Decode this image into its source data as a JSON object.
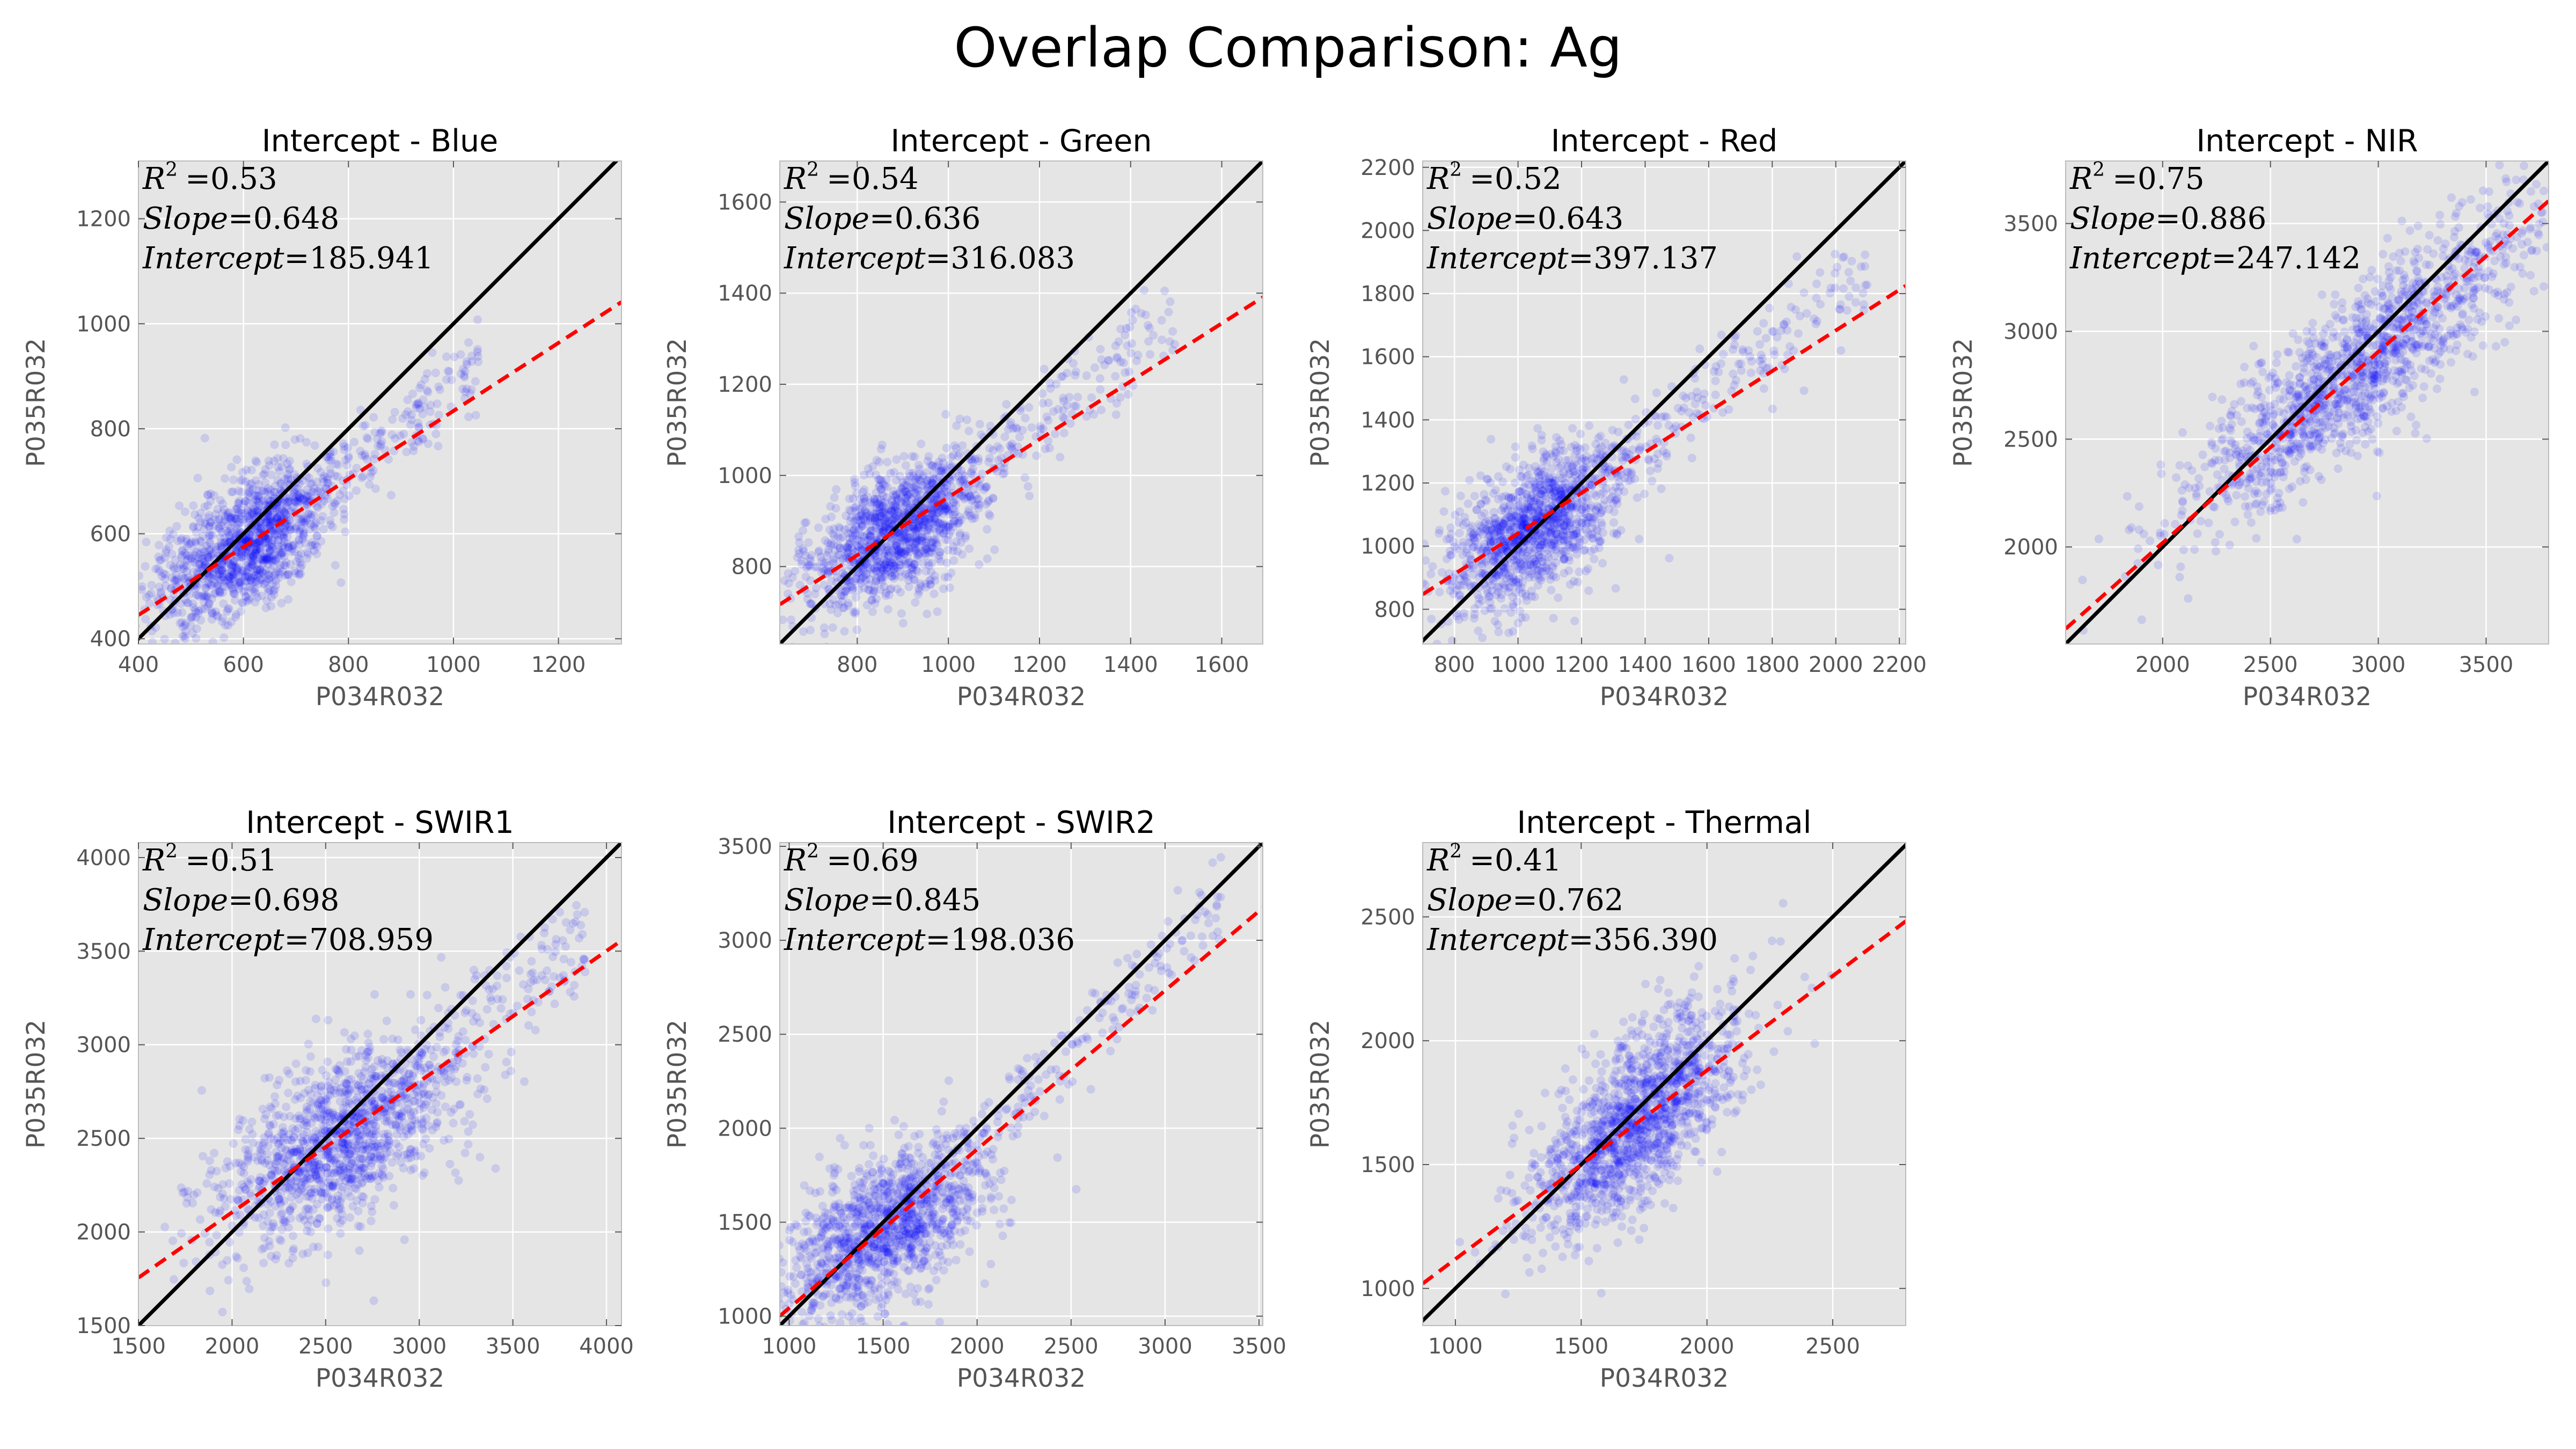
{
  "figure_title": "Overlap Comparison: Ag",
  "colors": {
    "panel_bg": "#e5e5e5",
    "grid": "#ffffff",
    "points": "#0000ff",
    "one_to_one": "#000000",
    "fit": "#ff0000"
  },
  "chart_data": [
    {
      "type": "scatter",
      "title": "Intercept - Blue",
      "xlabel": "P034R032",
      "ylabel": "P035R032",
      "xlim": [
        400,
        1320
      ],
      "ylim": [
        390,
        1310
      ],
      "xticks": [
        400,
        600,
        800,
        1000,
        1200
      ],
      "yticks": [
        400,
        600,
        800,
        1000,
        1200
      ],
      "r2_label": "R",
      "r2_sup": "2",
      "r2": "=0.53",
      "slope_label": "Slope",
      "slope": "=0.648",
      "intercept_label": "Intercept",
      "intercept": "=185.941",
      "fit": {
        "slope": 0.648,
        "intercept": 185.941
      },
      "cloud": {
        "cx": 600,
        "cy": 575,
        "sx": 80,
        "sy": 75,
        "n": 1400,
        "tail_to": 1050,
        "seed": 11
      }
    },
    {
      "type": "scatter",
      "title": "Intercept - Green",
      "xlabel": "P034R032",
      "ylabel": "P035R032",
      "xlim": [
        630,
        1690
      ],
      "ylim": [
        630,
        1690
      ],
      "xticks": [
        800,
        1000,
        1200,
        1400,
        1600
      ],
      "yticks": [
        800,
        1000,
        1200,
        1400,
        1600
      ],
      "r2_label": "R",
      "r2_sup": "2",
      "r2": "=0.54",
      "slope_label": "Slope",
      "slope": "=0.636",
      "intercept_label": "Intercept",
      "intercept": "=316.083",
      "fit": {
        "slope": 0.636,
        "intercept": 316.083
      },
      "cloud": {
        "cx": 880,
        "cy": 875,
        "sx": 95,
        "sy": 85,
        "n": 1400,
        "tail_to": 1500,
        "seed": 22
      }
    },
    {
      "type": "scatter",
      "title": "Intercept - Red",
      "xlabel": "P034R032",
      "ylabel": "P035R032",
      "xlim": [
        700,
        2220
      ],
      "ylim": [
        690,
        2220
      ],
      "xticks": [
        800,
        1000,
        1200,
        1400,
        1600,
        1800,
        2000,
        2200
      ],
      "yticks": [
        800,
        1000,
        1200,
        1400,
        1600,
        1800,
        2000,
        2200
      ],
      "r2_label": "R",
      "r2_sup": "2",
      "r2": "=0.52",
      "slope_label": "Slope",
      "slope": "=0.643",
      "intercept_label": "Intercept",
      "intercept": "=397.137",
      "fit": {
        "slope": 0.643,
        "intercept": 397.137
      },
      "cloud": {
        "cx": 1050,
        "cy": 1060,
        "sx": 140,
        "sy": 130,
        "n": 1400,
        "tail_to": 2100,
        "seed": 33
      }
    },
    {
      "type": "scatter",
      "title": "Intercept - NIR",
      "xlabel": "P034R032",
      "ylabel": "P035R032",
      "xlim": [
        1550,
        3790
      ],
      "ylim": [
        1550,
        3790
      ],
      "xticks": [
        2000,
        2500,
        3000,
        3500
      ],
      "yticks": [
        2000,
        2500,
        3000,
        3500
      ],
      "r2_label": "R",
      "r2_sup": "2",
      "r2": "=0.75",
      "slope_label": "Slope",
      "slope": "=0.886",
      "intercept_label": "Intercept",
      "intercept": "=247.142",
      "fit": {
        "slope": 0.886,
        "intercept": 247.142
      },
      "cloud": {
        "cx": 2900,
        "cy": 2820,
        "sx": 420,
        "sy": 380,
        "n": 1400,
        "tail_to": 0,
        "seed": 44,
        "corr": 0.88
      }
    },
    {
      "type": "scatter",
      "title": "Intercept - SWIR1",
      "xlabel": "P034R032",
      "ylabel": "P035R032",
      "xlim": [
        1500,
        4080
      ],
      "ylim": [
        1500,
        4080
      ],
      "xticks": [
        1500,
        2000,
        2500,
        3000,
        3500,
        4000
      ],
      "yticks": [
        1500,
        2000,
        2500,
        3000,
        3500,
        4000
      ],
      "r2_label": "R",
      "r2_sup": "2",
      "r2": "=0.51",
      "slope_label": "Slope",
      "slope": "=0.698",
      "intercept_label": "Intercept",
      "intercept": "=708.959",
      "fit": {
        "slope": 0.698,
        "intercept": 708.959
      },
      "cloud": {
        "cx": 2550,
        "cy": 2480,
        "sx": 330,
        "sy": 270,
        "n": 1400,
        "tail_to": 3900,
        "seed": 55
      }
    },
    {
      "type": "scatter",
      "title": "Intercept - SWIR2",
      "xlabel": "P034R032",
      "ylabel": "P035R032",
      "xlim": [
        950,
        3520
      ],
      "ylim": [
        950,
        3520
      ],
      "xticks": [
        1000,
        1500,
        2000,
        2500,
        3000,
        3500
      ],
      "yticks": [
        1000,
        1500,
        2000,
        2500,
        3000,
        3500
      ],
      "r2_label": "R",
      "r2_sup": "2",
      "r2": "=0.69",
      "slope_label": "Slope",
      "slope": "=0.845",
      "intercept_label": "Intercept",
      "intercept": "=198.036",
      "fit": {
        "slope": 0.845,
        "intercept": 198.036
      },
      "cloud": {
        "cx": 1500,
        "cy": 1450,
        "sx": 270,
        "sy": 230,
        "n": 1400,
        "tail_to": 3300,
        "seed": 66
      }
    },
    {
      "type": "scatter",
      "title": "Intercept - Thermal",
      "xlabel": "P034R032",
      "ylabel": "P035R032",
      "xlim": [
        870,
        2790
      ],
      "ylim": [
        850,
        2800
      ],
      "xticks": [
        1000,
        1500,
        2000,
        2500
      ],
      "yticks": [
        1000,
        1500,
        2000,
        2500
      ],
      "r2_label": "R",
      "r2_sup": "2",
      "r2": "=0.41",
      "slope_label": "Slope",
      "slope": "=0.762",
      "intercept_label": "Intercept",
      "intercept": "=356.390",
      "fit": {
        "slope": 0.762,
        "intercept": 356.39
      },
      "cloud": {
        "cx": 1720,
        "cy": 1680,
        "sx": 200,
        "sy": 230,
        "n": 1400,
        "tail_to": 0,
        "seed": 77,
        "corr": 0.64
      }
    }
  ]
}
